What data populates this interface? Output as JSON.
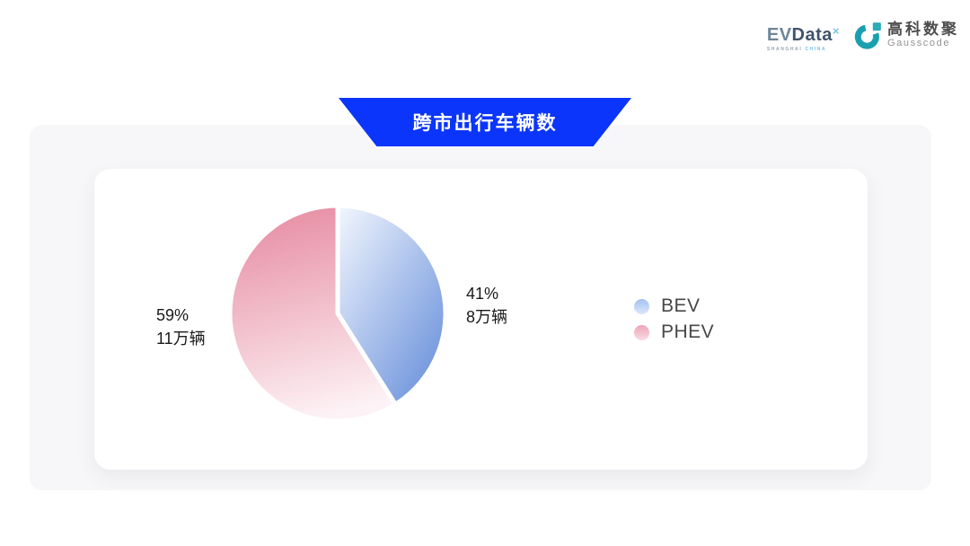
{
  "header": {
    "evdata_logo": {
      "text_ev": "EV",
      "text_data": "Data",
      "superscript": "×",
      "subtext_left": "SHANGHAI",
      "subtext_right": "CHINA"
    },
    "gausscode_logo": {
      "cn": "高科数聚",
      "en": "Gausscode",
      "icon_color": "#18a0ae",
      "icon_square_color": "#2aabb8"
    }
  },
  "banner": {
    "title": "跨市出行车辆数",
    "background_color": "#0b35fb",
    "text_color": "#ffffff"
  },
  "chart_data": {
    "type": "pie",
    "title": "跨市出行车辆数",
    "start_angle_deg": 0,
    "direction": "clockwise",
    "legend_position": "right",
    "slices": [
      {
        "name": "BEV",
        "percent": 41,
        "percent_label": "41%",
        "value_label": "8万辆",
        "gradient": [
          "#f3f7fe",
          "#6e94dc"
        ]
      },
      {
        "name": "PHEV",
        "percent": 59,
        "percent_label": "59%",
        "value_label": "11万辆",
        "gradient": [
          "#e78da3",
          "#fdf3f6"
        ]
      }
    ],
    "legend": [
      {
        "label": "BEV",
        "dot_gradient": [
          "#a3c1f0",
          "#dce8fb"
        ]
      },
      {
        "label": "PHEV",
        "dot_gradient": [
          "#eda4b7",
          "#f9dbe3"
        ]
      }
    ],
    "slice_gap_color": "#ffffff",
    "slice_gap_width": 5
  }
}
